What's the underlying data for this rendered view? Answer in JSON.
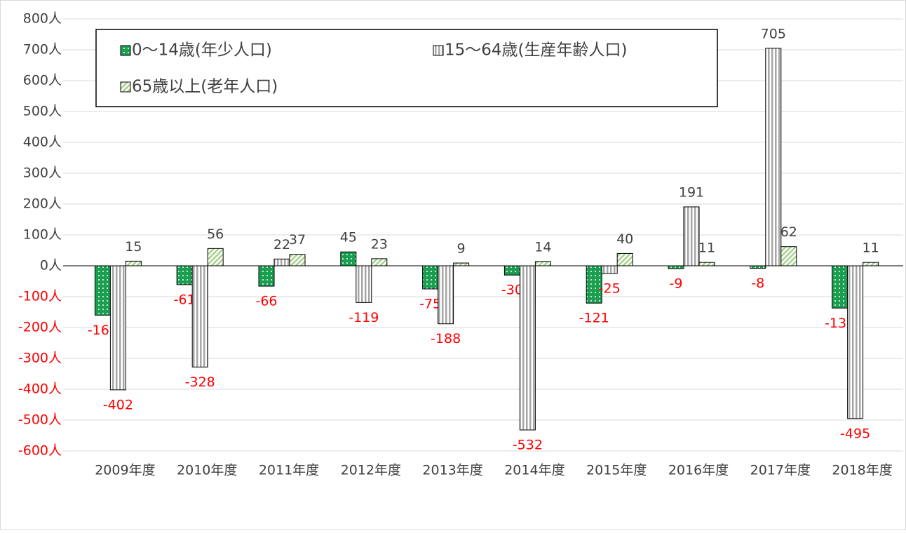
{
  "chart_data": {
    "type": "bar",
    "categories": [
      "2009年度",
      "2010年度",
      "2011年度",
      "2012年度",
      "2013年度",
      "2014年度",
      "2015年度",
      "2016年度",
      "2017年度",
      "2018年度"
    ],
    "series": [
      {
        "name": "0～14歳(年少人口)",
        "color": "#1a9e50",
        "pattern": "dots",
        "values": [
          -160,
          -61,
          -66,
          45,
          -75,
          -30,
          -121,
          -9,
          -8,
          -137
        ]
      },
      {
        "name": "15～64歳(生産年齢人口)",
        "color": "#a6a6a6",
        "pattern": "vertical",
        "values": [
          -402,
          -328,
          22,
          -119,
          -188,
          -532,
          -25,
          191,
          705,
          -495
        ]
      },
      {
        "name": "65歳以上(老年人口)",
        "color": "#a9d18e",
        "pattern": "diagonal",
        "values": [
          15,
          56,
          37,
          23,
          9,
          14,
          40,
          11,
          62,
          11
        ]
      }
    ],
    "ylim": [
      -600,
      800
    ],
    "yticks": [
      {
        "value": -600,
        "label": "-600人"
      },
      {
        "value": -500,
        "label": "-500人"
      },
      {
        "value": -400,
        "label": "-400人"
      },
      {
        "value": -300,
        "label": "-300人"
      },
      {
        "value": -200,
        "label": "-200人"
      },
      {
        "value": -100,
        "label": "-100人"
      },
      {
        "value": 0,
        "label": "0人"
      },
      {
        "value": 100,
        "label": "100人"
      },
      {
        "value": 200,
        "label": "200人"
      },
      {
        "value": 300,
        "label": "300人"
      },
      {
        "value": 400,
        "label": "400人"
      },
      {
        "value": 500,
        "label": "500人"
      },
      {
        "value": 600,
        "label": "600人"
      },
      {
        "value": 700,
        "label": "700人"
      },
      {
        "value": 800,
        "label": "800人"
      }
    ],
    "grid": true,
    "legend": "upper-left",
    "negative_color": "#ff0000"
  }
}
